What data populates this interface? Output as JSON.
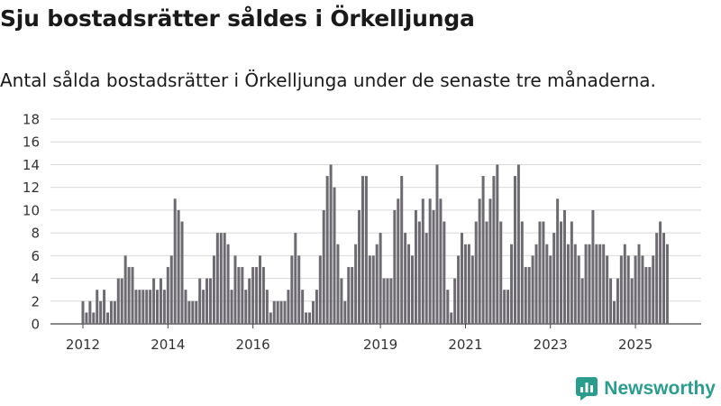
{
  "header": {
    "title": "Sju bostadsrätter såldes i Örkelljunga",
    "subtitle": "Antal sålda bostadsrätter i Örkelljunga under de senaste tre månaderna."
  },
  "brand": {
    "name": "Newsworthy",
    "icon": "newsworthy-logo-icon",
    "color": "#2a9d8f"
  },
  "chart_data": {
    "type": "bar",
    "title": "Sju bostadsrätter såldes i Örkelljunga",
    "subtitle": "Antal sålda bostadsrätter i Örkelljunga under de senaste tre månaderna.",
    "xlabel": "",
    "ylabel": "",
    "ylim": [
      0,
      18
    ],
    "yticks": [
      0,
      2,
      4,
      6,
      8,
      10,
      12,
      14,
      16,
      18
    ],
    "grid": true,
    "x_start": "2012-01",
    "x_tick_labels": [
      {
        "label": "2012",
        "index": 0
      },
      {
        "label": "2014",
        "index": 24
      },
      {
        "label": "2016",
        "index": 48
      },
      {
        "label": "2019",
        "index": 84
      },
      {
        "label": "2021",
        "index": 108
      },
      {
        "label": "2023",
        "index": 132
      },
      {
        "label": "2025",
        "index": 156
      }
    ],
    "bar_color": "#6d6b71",
    "highlight_color": "#2a9d8f",
    "highlight_index": 166,
    "highlight_label": "7",
    "values": [
      2,
      1,
      2,
      1,
      3,
      2,
      3,
      1,
      2,
      2,
      4,
      4,
      6,
      5,
      5,
      3,
      3,
      3,
      3,
      3,
      4,
      3,
      4,
      3,
      5,
      6,
      11,
      10,
      9,
      3,
      2,
      2,
      2,
      4,
      3,
      4,
      4,
      6,
      8,
      8,
      8,
      7,
      3,
      6,
      5,
      5,
      3,
      4,
      5,
      5,
      6,
      5,
      3,
      1,
      2,
      2,
      2,
      2,
      3,
      6,
      8,
      6,
      3,
      1,
      1,
      2,
      3,
      6,
      10,
      13,
      14,
      12,
      7,
      4,
      2,
      5,
      5,
      7,
      10,
      13,
      13,
      6,
      6,
      7,
      8,
      4,
      4,
      4,
      10,
      11,
      13,
      8,
      7,
      6,
      10,
      9,
      11,
      8,
      11,
      10,
      14,
      11,
      9,
      3,
      1,
      4,
      6,
      8,
      7,
      7,
      6,
      9,
      11,
      13,
      9,
      11,
      13,
      14,
      9,
      3,
      3,
      7,
      13,
      14,
      9,
      5,
      5,
      6,
      7,
      9,
      9,
      7,
      6,
      8,
      11,
      9,
      10,
      7,
      9,
      7,
      6,
      4,
      7,
      7,
      10,
      7,
      7,
      7,
      6,
      4,
      2,
      4,
      6,
      7,
      6,
      4,
      6,
      7,
      6,
      5,
      5,
      6,
      8,
      9,
      8,
      7
    ]
  }
}
